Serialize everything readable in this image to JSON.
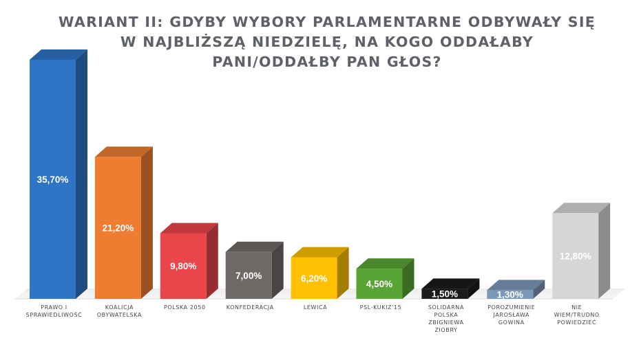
{
  "chart_data": {
    "type": "bar",
    "title": [
      "WARIANT II: GDYBY WYBORY PARLAMENTARNE ODBYWAŁY SIĘ",
      "W NAJBLIŻSZĄ NIEDZIELĘ, NA KOGO ODDAŁABY",
      "PANI/ODDAŁBY PAN GŁOS?"
    ],
    "categories": [
      [
        "PRAWO I",
        "SPRAWIEDLIWOŚĆ"
      ],
      [
        "KOALICJA",
        "OBYWATELSKA"
      ],
      [
        "POLSKA 2050"
      ],
      [
        "KONFEDERACJA"
      ],
      [
        "LEWICA"
      ],
      [
        "PSL-KUKIZ'15"
      ],
      [
        "SOLIDARNA",
        "POLSKA",
        "ZBIGNIEWA",
        "ZIOBRY"
      ],
      [
        "POROZUMIENIE",
        "JAROSŁAWA",
        "GOWINA"
      ],
      [
        "NIE",
        "WIEM/TRUDNO",
        "POWIEDZIEĆ"
      ]
    ],
    "values": [
      35.7,
      21.2,
      9.8,
      7.0,
      6.2,
      4.5,
      1.5,
      1.3,
      12.8
    ],
    "value_labels": [
      "35,70%",
      "21,20%",
      "9,80%",
      "7,00%",
      "6,20%",
      "4,50%",
      "1,50%",
      "1,30%",
      "12,80%"
    ],
    "colors": [
      "#2e75c6",
      "#ee7d31",
      "#e9454a",
      "#6f6a68",
      "#fec000",
      "#5aa335",
      "#1b1b1b",
      "#7d97b9",
      "#d6d6d6"
    ],
    "ylim": [
      0,
      37
    ]
  }
}
